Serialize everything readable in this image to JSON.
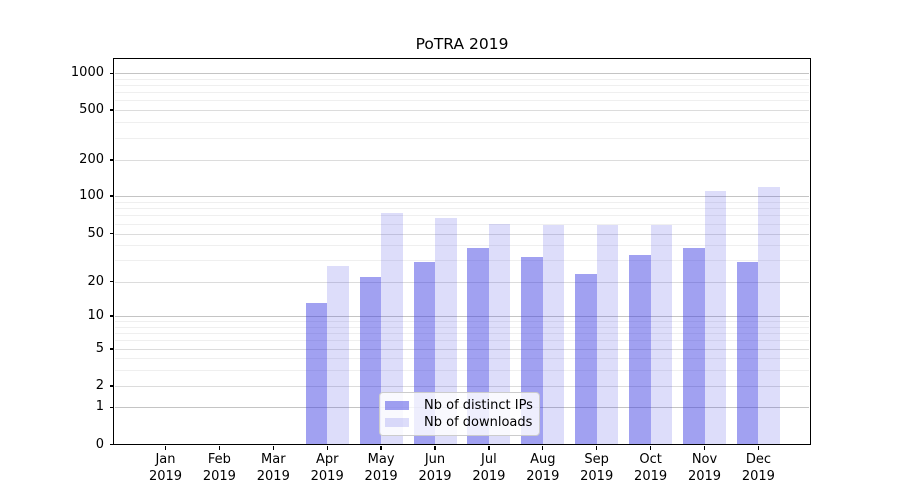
{
  "title": "PoTRA 2019",
  "colors": {
    "bar_distinct_ips": "rgba(55,55,225,0.47)",
    "bar_downloads": "rgba(55,55,225,0.17)"
  },
  "legend": {
    "items": [
      {
        "label": "Nb of distinct IPs",
        "series_key": "distinct_ips"
      },
      {
        "label": "Nb of downloads",
        "series_key": "downloads"
      }
    ]
  },
  "chart_data": {
    "type": "bar",
    "title": "PoTRA 2019",
    "categories": [
      "Jan 2019",
      "Feb 2019",
      "Mar 2019",
      "Apr 2019",
      "May 2019",
      "Jun 2019",
      "Jul 2019",
      "Aug 2019",
      "Sep 2019",
      "Oct 2019",
      "Nov 2019",
      "Dec 2019"
    ],
    "series": [
      {
        "name": "Nb of distinct IPs",
        "values": [
          0,
          0,
          0,
          13,
          22,
          29,
          38,
          32,
          23,
          33,
          38,
          29
        ]
      },
      {
        "name": "Nb of downloads",
        "values": [
          0,
          0,
          0,
          27,
          73,
          66,
          60,
          59,
          59,
          59,
          110,
          118
        ]
      }
    ],
    "xlabel": "",
    "ylabel": "",
    "yscale": "symlog",
    "yticks": [
      0,
      1,
      2,
      5,
      10,
      20,
      50,
      100,
      200,
      500,
      1000
    ],
    "ylim": [
      0,
      1350
    ],
    "grid": true,
    "legend_position": "lower center"
  }
}
